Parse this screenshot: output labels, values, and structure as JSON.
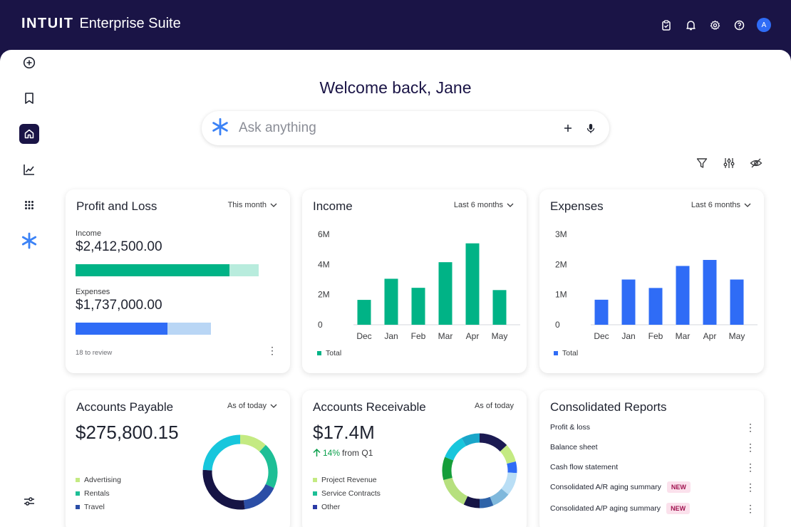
{
  "header": {
    "logo": "INTUIT",
    "suite": "Enterprise Suite",
    "avatar": "A"
  },
  "welcome": "Welcome back, Jane",
  "search": {
    "placeholder": "Ask anything"
  },
  "colors": {
    "navy": "#1a1446",
    "green": "#00b386",
    "blue": "#2f6cf6",
    "green_light": "#b8ecdd",
    "blue_light": "#b9d6f5"
  },
  "profit_loss": {
    "title": "Profit and Loss",
    "filter": "This month",
    "income_label": "Income",
    "income_value": "$2,412,500.00",
    "expenses_label": "Expenses",
    "expenses_value": "$1,737,000.00",
    "review": "18 to review"
  },
  "income": {
    "title": "Income",
    "filter": "Last 6 months",
    "legend": "Total"
  },
  "expenses": {
    "title": "Expenses",
    "filter": "Last 6 months",
    "legend": "Total"
  },
  "chart_data": [
    {
      "type": "bar",
      "title": "Income",
      "categories": [
        "Dec",
        "Jan",
        "Feb",
        "Mar",
        "Apr",
        "May"
      ],
      "series": [
        {
          "name": "Total",
          "values": [
            1.65,
            3.05,
            2.45,
            4.15,
            5.4,
            2.3
          ]
        }
      ],
      "yticks": [
        "0",
        "2M",
        "4M",
        "6M"
      ],
      "ylim": [
        0,
        6
      ],
      "color": "#00b386"
    },
    {
      "type": "bar",
      "title": "Expenses",
      "categories": [
        "Dec",
        "Jan",
        "Feb",
        "Mar",
        "Apr",
        "May"
      ],
      "series": [
        {
          "name": "Total",
          "values": [
            0.83,
            1.5,
            1.22,
            1.95,
            2.15,
            1.5
          ]
        }
      ],
      "yticks": [
        "0",
        "1M",
        "2M",
        "3M"
      ],
      "ylim": [
        0,
        3
      ],
      "color": "#2f6cf6"
    },
    {
      "type": "pie",
      "title": "Accounts Payable",
      "categories": [
        "Advertising",
        "Rentals",
        "Travel"
      ],
      "segments": [
        {
          "value": 12,
          "color": "#c4ea82"
        },
        {
          "value": 20,
          "color": "#1dbf96"
        },
        {
          "value": 16,
          "color": "#2b4ea6"
        },
        {
          "value": 28,
          "color": "#161445"
        },
        {
          "value": 24,
          "color": "#17c6dc"
        }
      ]
    },
    {
      "type": "pie",
      "title": "Accounts Receivable",
      "categories": [
        "Project Revenue",
        "Service Contracts",
        "Other"
      ],
      "segments": [
        {
          "value": 13,
          "color": "#1b1a52"
        },
        {
          "value": 8,
          "color": "#c4ea82"
        },
        {
          "value": 5,
          "color": "#2f6cf6"
        },
        {
          "value": 10,
          "color": "#b9def5"
        },
        {
          "value": 8,
          "color": "#7fb8dc"
        },
        {
          "value": 6,
          "color": "#2e63a8"
        },
        {
          "value": 7,
          "color": "#161445"
        },
        {
          "value": 14,
          "color": "#b6e07e"
        },
        {
          "value": 10,
          "color": "#159e3a"
        },
        {
          "value": 11,
          "color": "#17c6dc"
        },
        {
          "value": 8,
          "color": "#1aa6c9"
        }
      ]
    }
  ],
  "accounts_payable": {
    "title": "Accounts Payable",
    "filter": "As of today",
    "value": "$275,800.15",
    "legend": [
      {
        "label": "Advertising",
        "color": "#c4ea82"
      },
      {
        "label": "Rentals",
        "color": "#1dbf96"
      },
      {
        "label": "Travel",
        "color": "#2b4ea6"
      }
    ]
  },
  "accounts_receivable": {
    "title": "Accounts Receivable",
    "filter": "As of today",
    "value": "$17.4M",
    "change": "14%",
    "change_suffix": "from Q1",
    "legend": [
      {
        "label": "Project Revenue",
        "color": "#c4ea82"
      },
      {
        "label": "Service Contracts",
        "color": "#1dbf96"
      },
      {
        "label": "Other",
        "color": "#2b3aa6"
      }
    ]
  },
  "reports": {
    "title": "Consolidated Reports",
    "items": [
      {
        "label": "Profit & loss",
        "badge": ""
      },
      {
        "label": "Balance sheet",
        "badge": ""
      },
      {
        "label": "Cash flow statement",
        "badge": ""
      },
      {
        "label": "Consolidated A/R aging summary",
        "badge": "NEW"
      },
      {
        "label": "Consolidated A/P aging summary",
        "badge": "NEW"
      }
    ]
  }
}
